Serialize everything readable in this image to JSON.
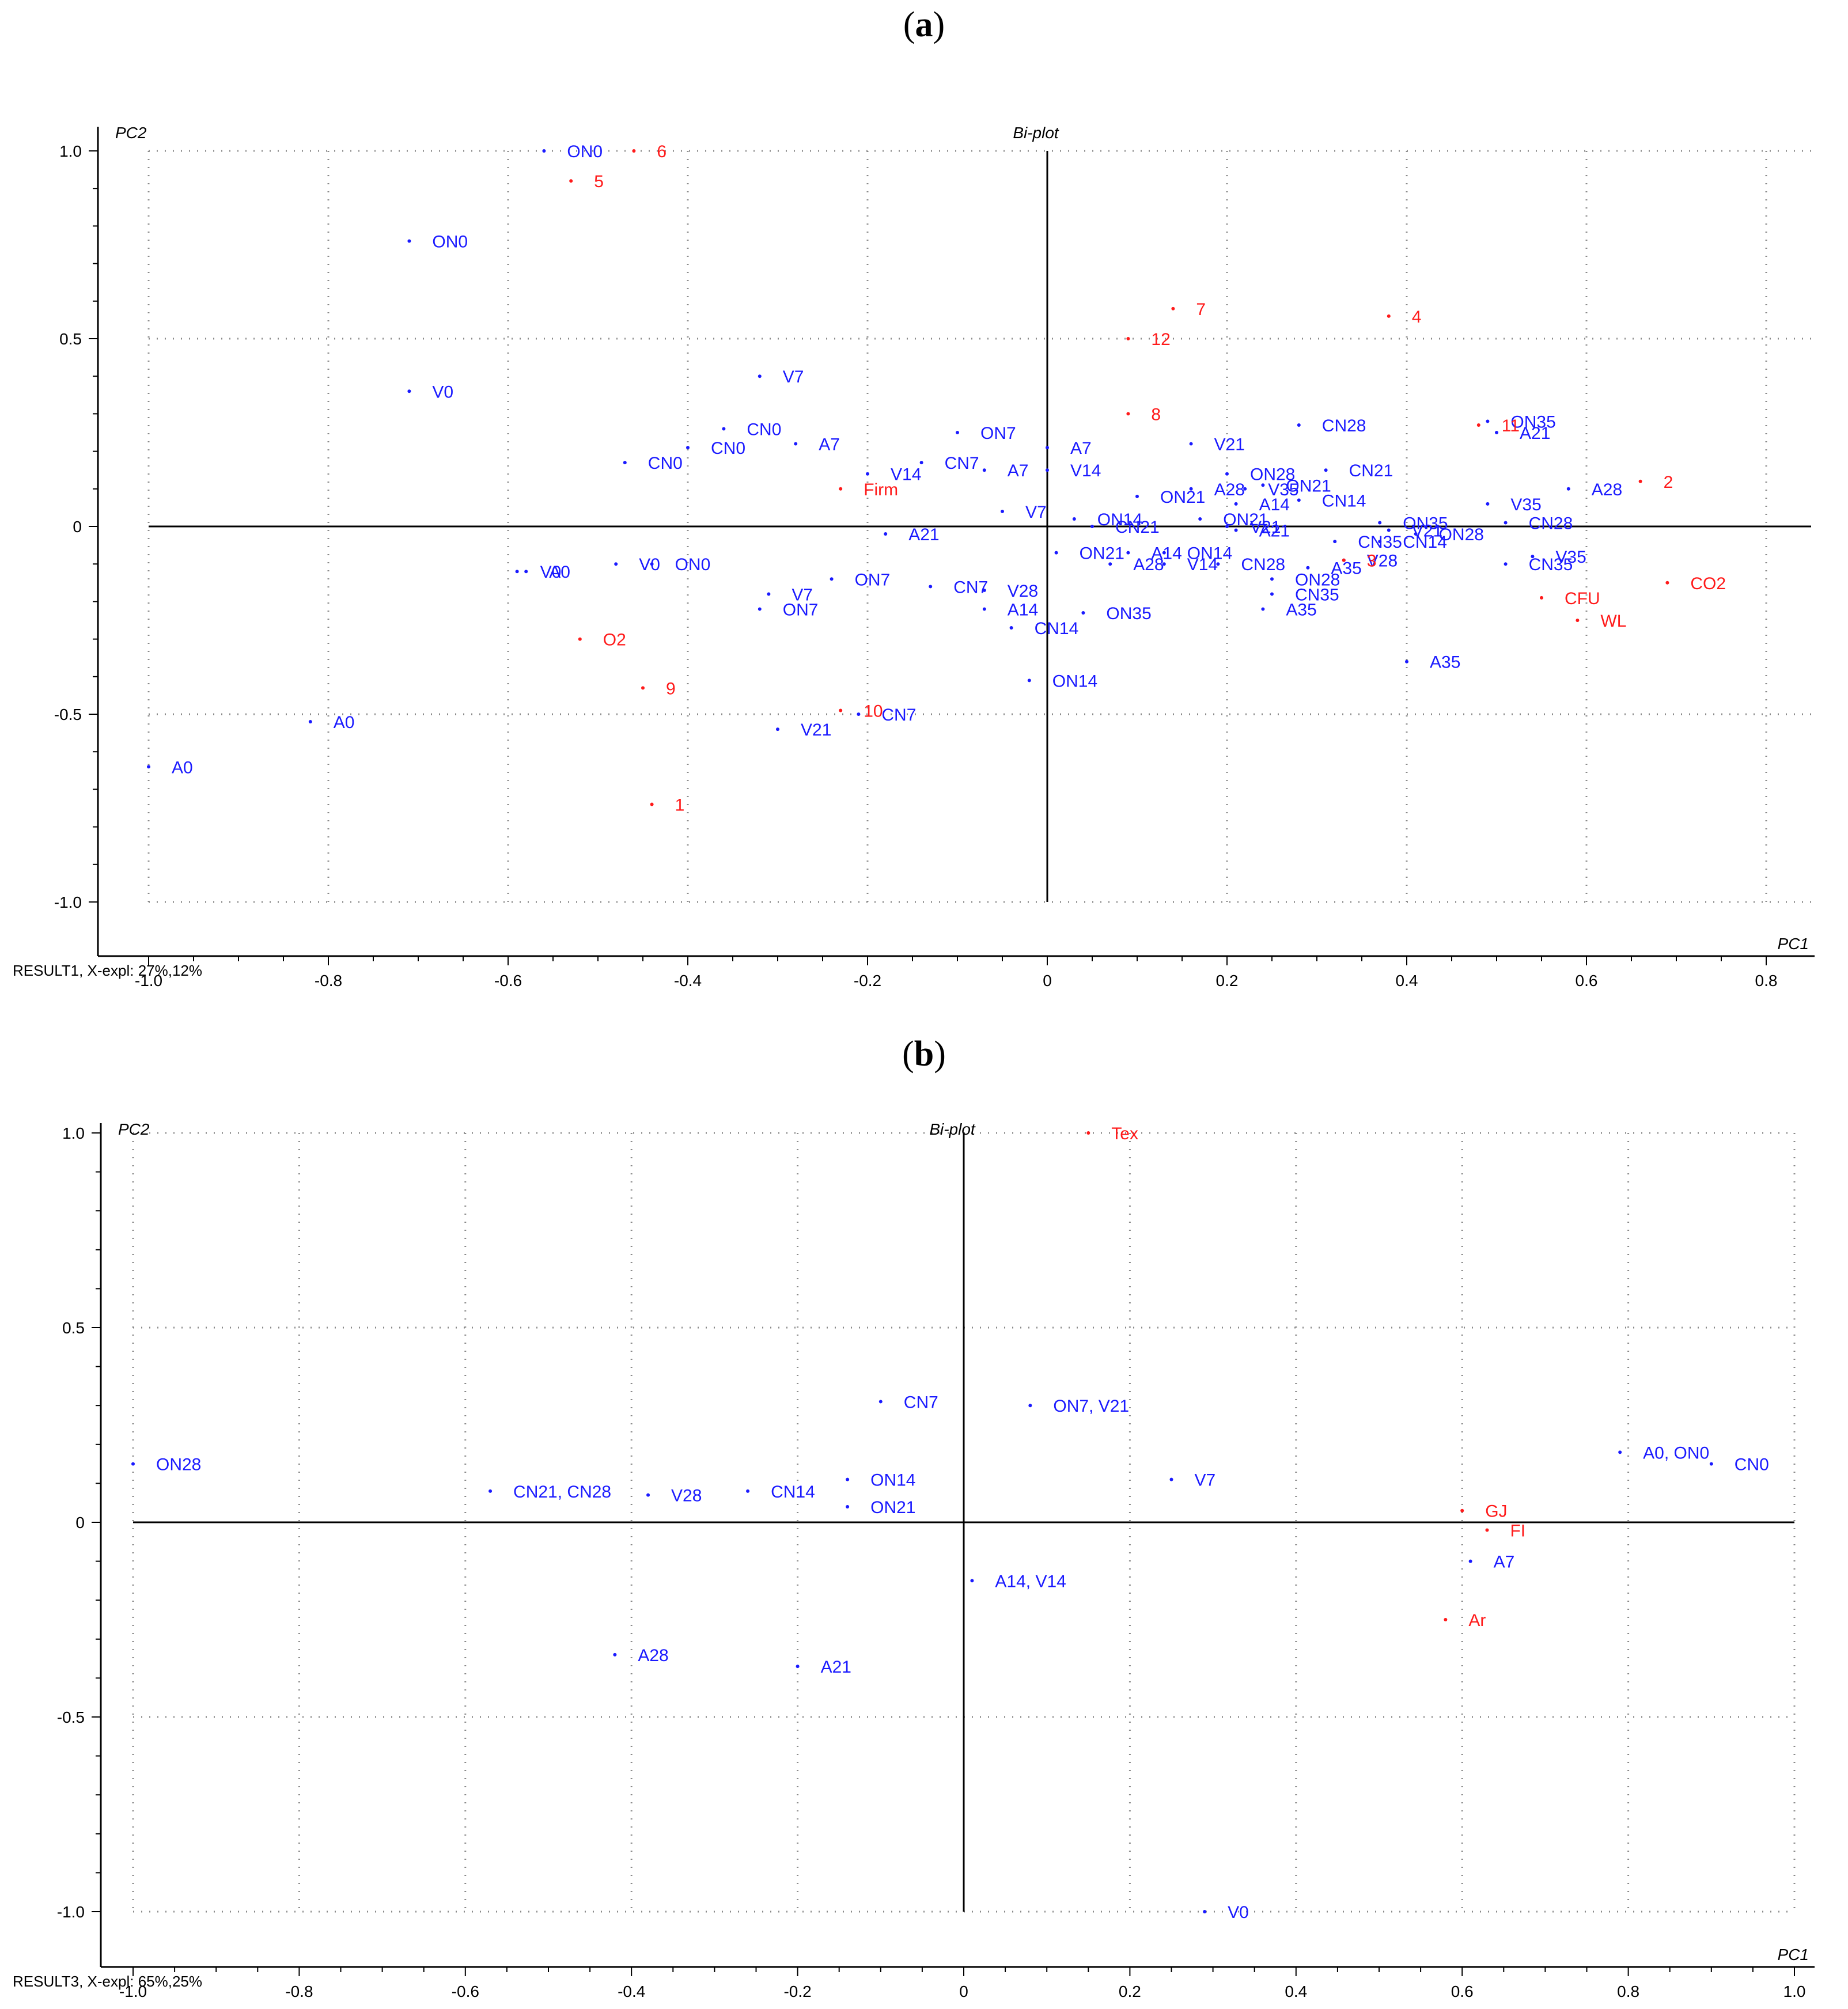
{
  "panels": [
    {
      "label_open": "(",
      "label_letter": "a",
      "label_close": ")"
    },
    {
      "label_open": "(",
      "label_letter": "b",
      "label_close": ")"
    }
  ],
  "colors": {
    "sample": "#1a1aff",
    "variable": "#ff1a1a",
    "axis": "#000000",
    "grid": "#8a8a8a"
  },
  "chart_data": [
    {
      "type": "scatter",
      "title": "Bi-plot",
      "xlabel": "PC1",
      "ylabel": "PC2",
      "footer": "RESULT1, X-expl: 27%,12%",
      "xlim": [
        -1.0,
        0.8
      ],
      "ylim": [
        -1.0,
        1.0
      ],
      "x_ticks": [
        -1.0,
        -0.8,
        -0.6,
        -0.4,
        -0.2,
        0,
        0.2,
        0.4,
        0.6,
        0.8
      ],
      "x_tick_labels": [
        "-1.0",
        "-0.8",
        "-0.6",
        "-0.4",
        "-0.2",
        "0",
        "0.2",
        "0.4",
        "0.6",
        "0.8"
      ],
      "y_ticks": [
        1.0,
        0.5,
        0,
        -0.5,
        -1.0
      ],
      "y_tick_labels": [
        "1.0",
        "0.5",
        "0",
        "-0.5",
        "-1.0"
      ],
      "x_grid": [
        -1.0,
        -0.8,
        -0.6,
        -0.4,
        -0.2,
        0.2,
        0.4,
        0.6,
        0.8
      ],
      "y_grid": [
        1.0,
        0.5,
        -0.5,
        -1.0
      ],
      "axis_right": 0.85,
      "points": [
        {
          "label": "ON0",
          "x": -0.56,
          "y": 1.0,
          "group": "sample"
        },
        {
          "label": "6",
          "x": -0.46,
          "y": 1.0,
          "group": "variable"
        },
        {
          "label": "5",
          "x": -0.53,
          "y": 0.92,
          "group": "variable"
        },
        {
          "label": "ON0",
          "x": -0.71,
          "y": 0.76,
          "group": "sample"
        },
        {
          "label": "V0",
          "x": -0.71,
          "y": 0.36,
          "group": "sample"
        },
        {
          "label": "7",
          "x": 0.14,
          "y": 0.58,
          "group": "variable"
        },
        {
          "label": "4",
          "x": 0.38,
          "y": 0.56,
          "group": "variable"
        },
        {
          "label": "12",
          "x": 0.09,
          "y": 0.5,
          "group": "variable"
        },
        {
          "label": "V7",
          "x": -0.32,
          "y": 0.4,
          "group": "sample"
        },
        {
          "label": "8",
          "x": 0.09,
          "y": 0.3,
          "group": "variable"
        },
        {
          "label": "CN28",
          "x": 0.28,
          "y": 0.27,
          "group": "sample"
        },
        {
          "label": "ON35",
          "x": 0.49,
          "y": 0.28,
          "group": "sample"
        },
        {
          "label": "11",
          "x": 0.48,
          "y": 0.27,
          "group": "variable"
        },
        {
          "label": "A21",
          "x": 0.5,
          "y": 0.25,
          "group": "sample"
        },
        {
          "label": "CN0",
          "x": -0.36,
          "y": 0.26,
          "group": "sample"
        },
        {
          "label": "ON7",
          "x": -0.1,
          "y": 0.25,
          "group": "sample"
        },
        {
          "label": "A7",
          "x": -0.28,
          "y": 0.22,
          "group": "sample"
        },
        {
          "label": "A7",
          "x": 0.0,
          "y": 0.21,
          "group": "sample"
        },
        {
          "label": "V21",
          "x": 0.16,
          "y": 0.22,
          "group": "sample"
        },
        {
          "label": "CN0",
          "x": -0.4,
          "y": 0.21,
          "group": "sample"
        },
        {
          "label": "CN0",
          "x": -0.47,
          "y": 0.17,
          "group": "sample"
        },
        {
          "label": "CN7",
          "x": -0.14,
          "y": 0.17,
          "group": "sample"
        },
        {
          "label": "A7",
          "x": -0.07,
          "y": 0.15,
          "group": "sample"
        },
        {
          "label": "V14",
          "x": 0.0,
          "y": 0.15,
          "group": "sample"
        },
        {
          "label": "V14",
          "x": -0.2,
          "y": 0.14,
          "group": "sample"
        },
        {
          "label": "CN21",
          "x": 0.31,
          "y": 0.15,
          "group": "sample"
        },
        {
          "label": "ON28",
          "x": 0.2,
          "y": 0.14,
          "group": "sample"
        },
        {
          "label": "ON21",
          "x": 0.24,
          "y": 0.11,
          "group": "sample"
        },
        {
          "label": "A28",
          "x": 0.16,
          "y": 0.1,
          "group": "sample"
        },
        {
          "label": "V35",
          "x": 0.22,
          "y": 0.1,
          "group": "sample"
        },
        {
          "label": "Firm",
          "x": -0.23,
          "y": 0.1,
          "group": "variable"
        },
        {
          "label": "ON21",
          "x": 0.1,
          "y": 0.08,
          "group": "sample"
        },
        {
          "label": "A14",
          "x": 0.21,
          "y": 0.06,
          "group": "sample"
        },
        {
          "label": "CN14",
          "x": 0.28,
          "y": 0.07,
          "group": "sample"
        },
        {
          "label": "2",
          "x": 0.66,
          "y": 0.12,
          "group": "variable"
        },
        {
          "label": "A28",
          "x": 0.58,
          "y": 0.1,
          "group": "sample"
        },
        {
          "label": "V35",
          "x": 0.49,
          "y": 0.06,
          "group": "sample"
        },
        {
          "label": "CN28",
          "x": 0.51,
          "y": 0.01,
          "group": "sample"
        },
        {
          "label": "V7",
          "x": -0.05,
          "y": 0.04,
          "group": "sample"
        },
        {
          "label": "ON14",
          "x": 0.03,
          "y": 0.02,
          "group": "sample"
        },
        {
          "label": "ON21",
          "x": 0.17,
          "y": 0.02,
          "group": "sample"
        },
        {
          "label": "CN21",
          "x": 0.05,
          "y": 0.0,
          "group": "sample"
        },
        {
          "label": "V21",
          "x": 0.2,
          "y": 0.0,
          "group": "sample"
        },
        {
          "label": "A21",
          "x": 0.21,
          "y": -0.01,
          "group": "sample"
        },
        {
          "label": "ON35",
          "x": 0.37,
          "y": 0.01,
          "group": "sample"
        },
        {
          "label": "V21",
          "x": 0.38,
          "y": -0.01,
          "group": "sample"
        },
        {
          "label": "ON28",
          "x": 0.41,
          "y": -0.02,
          "group": "sample"
        },
        {
          "label": "CN35",
          "x": 0.32,
          "y": -0.04,
          "group": "sample"
        },
        {
          "label": "CN14",
          "x": 0.37,
          "y": -0.04,
          "group": "sample"
        },
        {
          "label": "A21",
          "x": -0.18,
          "y": -0.02,
          "group": "sample"
        },
        {
          "label": "ON21",
          "x": 0.01,
          "y": -0.07,
          "group": "sample"
        },
        {
          "label": "A14",
          "x": 0.09,
          "y": -0.07,
          "group": "sample"
        },
        {
          "label": "ON14",
          "x": 0.13,
          "y": -0.07,
          "group": "sample"
        },
        {
          "label": "A28",
          "x": 0.07,
          "y": -0.1,
          "group": "sample"
        },
        {
          "label": "V14",
          "x": 0.13,
          "y": -0.1,
          "group": "sample"
        },
        {
          "label": "CN28",
          "x": 0.19,
          "y": -0.1,
          "group": "sample"
        },
        {
          "label": "V28",
          "x": 0.33,
          "y": -0.09,
          "group": "sample"
        },
        {
          "label": "A35",
          "x": 0.29,
          "y": -0.11,
          "group": "sample"
        },
        {
          "label": "3",
          "x": 0.33,
          "y": -0.09,
          "group": "variable"
        },
        {
          "label": "CN35",
          "x": 0.51,
          "y": -0.1,
          "group": "sample"
        },
        {
          "label": "V35",
          "x": 0.54,
          "y": -0.08,
          "group": "sample"
        },
        {
          "label": "A0",
          "x": -0.58,
          "y": -0.12,
          "group": "sample"
        },
        {
          "label": "V0",
          "x": -0.59,
          "y": -0.12,
          "group": "sample"
        },
        {
          "label": "V0",
          "x": -0.48,
          "y": -0.1,
          "group": "sample"
        },
        {
          "label": "ON0",
          "x": -0.44,
          "y": -0.1,
          "group": "sample"
        },
        {
          "label": "ON7",
          "x": -0.24,
          "y": -0.14,
          "group": "sample"
        },
        {
          "label": "CN7",
          "x": -0.13,
          "y": -0.16,
          "group": "sample"
        },
        {
          "label": "V28",
          "x": -0.07,
          "y": -0.17,
          "group": "sample"
        },
        {
          "label": "ON28",
          "x": 0.25,
          "y": -0.14,
          "group": "sample"
        },
        {
          "label": "CN35",
          "x": 0.25,
          "y": -0.18,
          "group": "sample"
        },
        {
          "label": "A35",
          "x": 0.24,
          "y": -0.22,
          "group": "sample"
        },
        {
          "label": "V7",
          "x": -0.31,
          "y": -0.18,
          "group": "sample"
        },
        {
          "label": "ON7",
          "x": -0.32,
          "y": -0.22,
          "group": "sample"
        },
        {
          "label": "A14",
          "x": -0.07,
          "y": -0.22,
          "group": "sample"
        },
        {
          "label": "ON35",
          "x": 0.04,
          "y": -0.23,
          "group": "sample"
        },
        {
          "label": "CN14",
          "x": -0.04,
          "y": -0.27,
          "group": "sample"
        },
        {
          "label": "CFU",
          "x": 0.55,
          "y": -0.19,
          "group": "variable"
        },
        {
          "label": "CO2",
          "x": 0.69,
          "y": -0.15,
          "group": "variable"
        },
        {
          "label": "WL",
          "x": 0.59,
          "y": -0.25,
          "group": "variable"
        },
        {
          "label": "O2",
          "x": -0.52,
          "y": -0.3,
          "group": "variable"
        },
        {
          "label": "A35",
          "x": 0.4,
          "y": -0.36,
          "group": "sample"
        },
        {
          "label": "ON14",
          "x": -0.02,
          "y": -0.41,
          "group": "sample"
        },
        {
          "label": "9",
          "x": -0.45,
          "y": -0.43,
          "group": "variable"
        },
        {
          "label": "10",
          "x": -0.23,
          "y": -0.49,
          "group": "variable"
        },
        {
          "label": "CN7",
          "x": -0.21,
          "y": -0.5,
          "group": "sample"
        },
        {
          "label": "A0",
          "x": -0.82,
          "y": -0.52,
          "group": "sample"
        },
        {
          "label": "V21",
          "x": -0.3,
          "y": -0.54,
          "group": "sample"
        },
        {
          "label": "A0",
          "x": -1.0,
          "y": -0.64,
          "group": "sample"
        },
        {
          "label": "1",
          "x": -0.44,
          "y": -0.74,
          "group": "variable"
        }
      ]
    },
    {
      "type": "scatter",
      "title": "Bi-plot",
      "xlabel": "PC1",
      "ylabel": "PC2",
      "footer": "RESULT3, X-expl: 65%,25%",
      "xlim": [
        -1.0,
        1.0
      ],
      "ylim": [
        -1.0,
        1.0
      ],
      "x_ticks": [
        -1.0,
        -0.8,
        -0.6,
        -0.4,
        -0.2,
        0,
        0.2,
        0.4,
        0.6,
        0.8,
        1.0
      ],
      "x_tick_labels": [
        "-1.0",
        "-0.8",
        "-0.6",
        "-0.4",
        "-0.2",
        "0",
        "0.2",
        "0.4",
        "0.6",
        "0.8",
        "1.0"
      ],
      "y_ticks": [
        1.0,
        0.5,
        0,
        -0.5,
        -1.0
      ],
      "y_tick_labels": [
        "1.0",
        "0.5",
        "0",
        "-0.5",
        "-1.0"
      ],
      "x_grid": [
        -1.0,
        -0.8,
        -0.6,
        -0.4,
        -0.2,
        0.2,
        0.4,
        0.6,
        0.8,
        1.0
      ],
      "y_grid": [
        1.0,
        0.5,
        -0.5,
        -1.0
      ],
      "axis_right": 1.0,
      "points": [
        {
          "label": "Tex",
          "x": 0.15,
          "y": 1.0,
          "group": "variable"
        },
        {
          "label": "CN7",
          "x": -0.1,
          "y": 0.31,
          "group": "sample"
        },
        {
          "label": "ON7, V21",
          "x": 0.08,
          "y": 0.3,
          "group": "sample"
        },
        {
          "label": "ON28",
          "x": -1.0,
          "y": 0.15,
          "group": "sample"
        },
        {
          "label": "A0, ON0",
          "x": 0.79,
          "y": 0.18,
          "group": "sample"
        },
        {
          "label": "CN0",
          "x": 0.9,
          "y": 0.15,
          "group": "sample"
        },
        {
          "label": "V7",
          "x": 0.25,
          "y": 0.11,
          "group": "sample"
        },
        {
          "label": "ON14",
          "x": -0.14,
          "y": 0.11,
          "group": "sample"
        },
        {
          "label": "CN21, CN28",
          "x": -0.57,
          "y": 0.08,
          "group": "sample"
        },
        {
          "label": "V28",
          "x": -0.38,
          "y": 0.07,
          "group": "sample"
        },
        {
          "label": "CN14",
          "x": -0.26,
          "y": 0.08,
          "group": "sample"
        },
        {
          "label": "ON21",
          "x": -0.14,
          "y": 0.04,
          "group": "sample"
        },
        {
          "label": "GJ",
          "x": 0.6,
          "y": 0.03,
          "group": "variable"
        },
        {
          "label": "FI",
          "x": 0.63,
          "y": -0.02,
          "group": "variable"
        },
        {
          "label": "A7",
          "x": 0.61,
          "y": -0.1,
          "group": "sample"
        },
        {
          "label": "A14, V14",
          "x": 0.01,
          "y": -0.15,
          "group": "sample"
        },
        {
          "label": "Ar",
          "x": 0.58,
          "y": -0.25,
          "group": "variable"
        },
        {
          "label": "A28",
          "x": -0.42,
          "y": -0.34,
          "group": "sample"
        },
        {
          "label": "A21",
          "x": -0.2,
          "y": -0.37,
          "group": "sample"
        },
        {
          "label": "V0",
          "x": 0.29,
          "y": -1.0,
          "group": "sample"
        }
      ]
    }
  ]
}
